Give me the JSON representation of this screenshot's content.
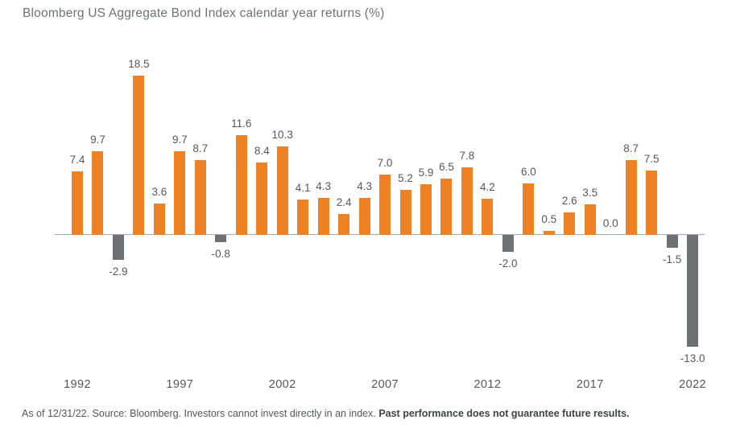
{
  "chart_data": {
    "type": "bar",
    "title": "Bloomberg US Aggregate Bond Index calendar year returns (%)",
    "categories": [
      "1992",
      "1993",
      "1994",
      "1995",
      "1996",
      "1997",
      "1998",
      "1999",
      "2000",
      "2001",
      "2002",
      "2003",
      "2004",
      "2005",
      "2006",
      "2007",
      "2008",
      "2009",
      "2010",
      "2011",
      "2012",
      "2013",
      "2014",
      "2015",
      "2016",
      "2017",
      "2018",
      "2019",
      "2020",
      "2021",
      "2022"
    ],
    "values": [
      7.4,
      9.7,
      -2.9,
      18.5,
      3.6,
      9.7,
      8.7,
      -0.8,
      11.6,
      8.4,
      10.3,
      4.1,
      4.3,
      2.4,
      4.3,
      7.0,
      5.2,
      5.9,
      6.5,
      7.8,
      4.2,
      -2.0,
      6.0,
      0.5,
      2.6,
      3.5,
      0.0,
      8.7,
      7.5,
      -1.5,
      -13.0
    ],
    "x_tick_labels": [
      "1992",
      "1997",
      "2002",
      "2007",
      "2012",
      "2017",
      "2022"
    ],
    "xlabel": "",
    "ylabel": "",
    "ylim": [
      -14,
      19
    ],
    "grid": false,
    "legend": false,
    "data_labels": "values shown to one decimal; above positive bars, below negative bars",
    "colors": {
      "positive_bar": "#EF8125",
      "negative_bar": "#6F7073",
      "axis_line": "#9DABB8",
      "label_text": "#55575B",
      "title_text": "#6E7176"
    }
  },
  "footer": {
    "text_regular": "As of 12/31/22. Source: Bloomberg. Investors cannot invest directly in an index. ",
    "text_bold": "Past performance does not guarantee future results."
  }
}
